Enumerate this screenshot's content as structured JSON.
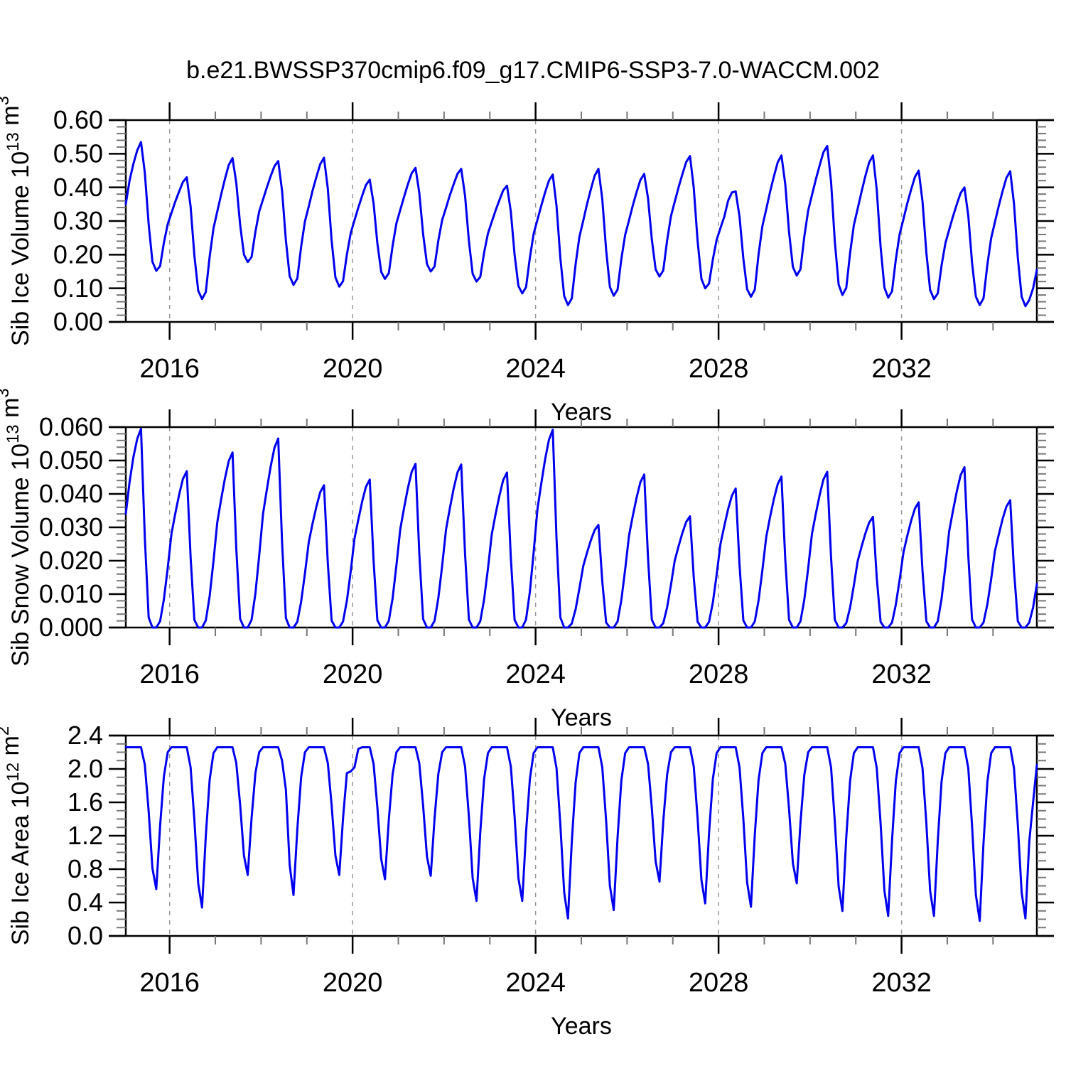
{
  "title": "b.e21.BWSSP370cmip6.f09_g17.CMIP6-SSP3-7.0-WACCM.002",
  "colors": {
    "line": "#0000ee",
    "frame": "#000000",
    "major_tick": "#000000",
    "minor_tick": "#777777",
    "gridline": "#999999",
    "background": "#ffffff"
  },
  "xaxis": {
    "label": "Years",
    "xmin": 2015.042,
    "xmax": 2034.958,
    "major_ticks": [
      2016,
      2020,
      2024,
      2028,
      2032
    ],
    "major_tick_labels": [
      "2016",
      "2020",
      "2024",
      "2028",
      "2032"
    ],
    "minor_tick_step_years": 1,
    "gridlines_at": [
      2016,
      2020,
      2024,
      2028,
      2032
    ],
    "grid_style": "dashed"
  },
  "chart_data": [
    {
      "type": "line",
      "panel": "top",
      "ylabel_plain": "Sib Ice Volume 10^13 m^3",
      "ylabel_segments": [
        {
          "t": "Sib Ice Volume 10"
        },
        {
          "t": "13",
          "sup": true
        },
        {
          "t": " m"
        },
        {
          "t": "3",
          "sup": true
        }
      ],
      "ylim": [
        0.0,
        0.6
      ],
      "ytick_values": [
        0.0,
        0.1,
        0.2,
        0.3,
        0.4,
        0.5,
        0.6
      ],
      "ytick_labels": [
        "0.00",
        "0.10",
        "0.20",
        "0.30",
        "0.40",
        "0.50",
        "0.60"
      ],
      "y_minor_step": 0.02,
      "series_name": "Sib Ice Volume",
      "start_year": 2015,
      "points_per_year": 12,
      "values": [
        0.35,
        0.42,
        0.47,
        0.51,
        0.535,
        0.443,
        0.29,
        0.179,
        0.152,
        0.166,
        0.235,
        0.291,
        0.324,
        0.358,
        0.388,
        0.416,
        0.43,
        0.343,
        0.198,
        0.093,
        0.068,
        0.089,
        0.194,
        0.278,
        0.328,
        0.378,
        0.424,
        0.466,
        0.487,
        0.413,
        0.289,
        0.2,
        0.178,
        0.193,
        0.268,
        0.328,
        0.364,
        0.4,
        0.433,
        0.463,
        0.478,
        0.39,
        0.242,
        0.136,
        0.11,
        0.129,
        0.223,
        0.299,
        0.344,
        0.39,
        0.431,
        0.469,
        0.488,
        0.396,
        0.243,
        0.132,
        0.105,
        0.121,
        0.2,
        0.264,
        0.302,
        0.34,
        0.375,
        0.407,
        0.423,
        0.352,
        0.234,
        0.149,
        0.128,
        0.145,
        0.227,
        0.293,
        0.333,
        0.372,
        0.409,
        0.442,
        0.458,
        0.384,
        0.261,
        0.172,
        0.15,
        0.165,
        0.242,
        0.303,
        0.339,
        0.376,
        0.409,
        0.44,
        0.455,
        0.375,
        0.241,
        0.143,
        0.12,
        0.134,
        0.206,
        0.263,
        0.297,
        0.331,
        0.362,
        0.391,
        0.405,
        0.328,
        0.2,
        0.107,
        0.085,
        0.103,
        0.191,
        0.262,
        0.304,
        0.346,
        0.385,
        0.42,
        0.438,
        0.345,
        0.19,
        0.077,
        0.05,
        0.07,
        0.172,
        0.253,
        0.301,
        0.35,
        0.394,
        0.435,
        0.455,
        0.365,
        0.214,
        0.104,
        0.078,
        0.096,
        0.187,
        0.259,
        0.302,
        0.346,
        0.386,
        0.422,
        0.44,
        0.367,
        0.245,
        0.156,
        0.135,
        0.153,
        0.242,
        0.314,
        0.357,
        0.4,
        0.439,
        0.475,
        0.493,
        0.399,
        0.241,
        0.128,
        0.1,
        0.114,
        0.186,
        0.244,
        0.279,
        0.313,
        0.36,
        0.385,
        0.388,
        0.313,
        0.188,
        0.097,
        0.075,
        0.096,
        0.201,
        0.285,
        0.335,
        0.386,
        0.432,
        0.474,
        0.495,
        0.409,
        0.267,
        0.163,
        0.138,
        0.157,
        0.254,
        0.331,
        0.377,
        0.423,
        0.465,
        0.504,
        0.523,
        0.417,
        0.239,
        0.111,
        0.08,
        0.101,
        0.205,
        0.288,
        0.337,
        0.387,
        0.433,
        0.474,
        0.495,
        0.393,
        0.224,
        0.102,
        0.072,
        0.091,
        0.185,
        0.261,
        0.306,
        0.352,
        0.393,
        0.431,
        0.45,
        0.358,
        0.206,
        0.095,
        0.068,
        0.085,
        0.168,
        0.234,
        0.274,
        0.314,
        0.35,
        0.383,
        0.4,
        0.316,
        0.176,
        0.075,
        0.05,
        0.07,
        0.169,
        0.249,
        0.297,
        0.345,
        0.388,
        0.428,
        0.448,
        0.352,
        0.191,
        0.075,
        0.047,
        0.065,
        0.1,
        0.155
      ]
    },
    {
      "type": "line",
      "panel": "middle",
      "ylabel_plain": "Sib Snow Volume 10^13 m^3",
      "ylabel_segments": [
        {
          "t": "Sib Snow Volume 10"
        },
        {
          "t": "13",
          "sup": true
        },
        {
          "t": " m"
        },
        {
          "t": "3",
          "sup": true
        }
      ],
      "ylim": [
        0.0,
        0.06
      ],
      "ytick_values": [
        0.0,
        0.01,
        0.02,
        0.03,
        0.04,
        0.05,
        0.06
      ],
      "ytick_labels": [
        "0.000",
        "0.010",
        "0.020",
        "0.030",
        "0.040",
        "0.050",
        "0.060"
      ],
      "y_minor_step": 0.002,
      "series_name": "Sib Snow Volume",
      "start_year": 2015,
      "points_per_year": 12,
      "values": [
        0.034,
        0.0435,
        0.051,
        0.0565,
        0.0595,
        0.0268,
        0.003,
        0.0,
        0.0,
        0.0019,
        0.0084,
        0.0178,
        0.0281,
        0.0342,
        0.0398,
        0.0445,
        0.0468,
        0.0211,
        0.0023,
        0.0,
        0.0,
        0.0021,
        0.0094,
        0.0199,
        0.0314,
        0.0383,
        0.0445,
        0.0498,
        0.0524,
        0.0236,
        0.0026,
        0.0,
        0.0,
        0.0023,
        0.0102,
        0.0215,
        0.034,
        0.0413,
        0.0481,
        0.0538,
        0.0566,
        0.0255,
        0.0028,
        0.0,
        0.0,
        0.0017,
        0.0077,
        0.0162,
        0.0256,
        0.0311,
        0.0362,
        0.0405,
        0.0426,
        0.0192,
        0.0021,
        0.0,
        0.0,
        0.0018,
        0.008,
        0.0168,
        0.0266,
        0.0323,
        0.0377,
        0.0421,
        0.0443,
        0.0199,
        0.0022,
        0.0,
        0.0,
        0.002,
        0.0088,
        0.0186,
        0.0294,
        0.0358,
        0.0417,
        0.0466,
        0.049,
        0.0221,
        0.0025,
        0.0,
        0.0,
        0.002,
        0.0088,
        0.0185,
        0.0293,
        0.0356,
        0.0415,
        0.0464,
        0.0488,
        0.022,
        0.0024,
        0.0,
        0.0,
        0.0019,
        0.0084,
        0.0176,
        0.0278,
        0.0339,
        0.0394,
        0.0441,
        0.0464,
        0.0209,
        0.0023,
        0.0,
        0.0,
        0.0024,
        0.0107,
        0.0225,
        0.0355,
        0.0432,
        0.0503,
        0.0562,
        0.0592,
        0.0266,
        0.003,
        0.0,
        0.0,
        0.0012,
        0.0055,
        0.0117,
        0.0184,
        0.0224,
        0.0261,
        0.0292,
        0.0307,
        0.0138,
        0.0015,
        0.0,
        0.0,
        0.0018,
        0.0082,
        0.0174,
        0.0275,
        0.0334,
        0.0389,
        0.0435,
        0.0458,
        0.0206,
        0.0023,
        0.0,
        0.0,
        0.0013,
        0.006,
        0.0127,
        0.02,
        0.0243,
        0.0283,
        0.0316,
        0.0333,
        0.015,
        0.0017,
        0.0,
        0.0,
        0.0017,
        0.0075,
        0.0158,
        0.025,
        0.0304,
        0.0354,
        0.0395,
        0.0416,
        0.0187,
        0.0021,
        0.0,
        0.0,
        0.0018,
        0.0081,
        0.0172,
        0.0271,
        0.033,
        0.0384,
        0.0429,
        0.0452,
        0.0203,
        0.0023,
        0.0,
        0.0,
        0.0019,
        0.0084,
        0.0177,
        0.028,
        0.034,
        0.0396,
        0.0443,
        0.0466,
        0.021,
        0.0023,
        0.0,
        0.0,
        0.0013,
        0.006,
        0.0126,
        0.0199,
        0.0242,
        0.0281,
        0.0314,
        0.0331,
        0.0149,
        0.0017,
        0.0,
        0.0,
        0.0015,
        0.0068,
        0.0143,
        0.0225,
        0.0274,
        0.0319,
        0.0356,
        0.0375,
        0.0169,
        0.0019,
        0.0,
        0.0,
        0.0019,
        0.0086,
        0.0182,
        0.0288,
        0.035,
        0.0408,
        0.0456,
        0.048,
        0.0216,
        0.0024,
        0.0,
        0.0,
        0.0015,
        0.0069,
        0.0145,
        0.0229,
        0.0278,
        0.0324,
        0.0362,
        0.0381,
        0.0171,
        0.0019,
        0.0,
        0.0,
        0.0015,
        0.006,
        0.013
      ]
    },
    {
      "type": "line",
      "panel": "bottom",
      "ylabel_plain": "Sib Ice Area 10^12 m^2",
      "ylabel_segments": [
        {
          "t": "Sib Ice Area 10"
        },
        {
          "t": "12",
          "sup": true
        },
        {
          "t": " m"
        },
        {
          "t": "2",
          "sup": true
        }
      ],
      "ylim": [
        0.0,
        2.4
      ],
      "ytick_values": [
        0.0,
        0.4,
        0.8,
        1.2,
        1.6,
        2.0,
        2.4
      ],
      "ytick_labels": [
        "0.0",
        "0.4",
        "0.8",
        "1.2",
        "1.6",
        "2.0",
        "2.4"
      ],
      "y_minor_step": 0.1,
      "series_name": "Sib Ice Area",
      "start_year": 2015,
      "points_per_year": 12,
      "values": [
        2.26,
        2.26,
        2.26,
        2.26,
        2.26,
        2.05,
        1.49,
        0.81,
        0.56,
        1.32,
        1.91,
        2.2,
        2.26,
        2.26,
        2.26,
        2.26,
        2.26,
        2.02,
        1.39,
        0.63,
        0.34,
        1.2,
        1.87,
        2.19,
        2.26,
        2.26,
        2.26,
        2.26,
        2.26,
        2.07,
        1.57,
        0.96,
        0.73,
        1.41,
        1.95,
        2.2,
        2.26,
        2.26,
        2.26,
        2.26,
        2.26,
        2.1,
        1.75,
        0.85,
        0.49,
        1.28,
        1.9,
        2.2,
        2.26,
        2.26,
        2.26,
        2.26,
        2.26,
        2.07,
        1.57,
        0.96,
        0.73,
        1.41,
        1.95,
        1.97,
        2.02,
        2.24,
        2.26,
        2.26,
        2.26,
        2.06,
        1.54,
        0.92,
        0.68,
        1.39,
        1.94,
        2.2,
        2.26,
        2.26,
        2.26,
        2.26,
        2.26,
        2.07,
        1.56,
        0.95,
        0.72,
        1.41,
        1.94,
        2.2,
        2.26,
        2.26,
        2.26,
        2.26,
        2.26,
        2.03,
        1.43,
        0.69,
        0.42,
        1.24,
        1.88,
        2.19,
        2.26,
        2.26,
        2.26,
        2.26,
        2.26,
        2.03,
        1.43,
        0.69,
        0.42,
        1.24,
        1.88,
        2.19,
        2.26,
        2.26,
        2.26,
        2.26,
        2.26,
        2.01,
        1.33,
        0.52,
        0.21,
        1.13,
        1.84,
        2.19,
        2.26,
        2.26,
        2.26,
        2.26,
        2.26,
        2.02,
        1.38,
        0.6,
        0.31,
        1.18,
        1.86,
        2.19,
        2.26,
        2.26,
        2.26,
        2.26,
        2.26,
        2.06,
        1.53,
        0.89,
        0.65,
        1.37,
        1.93,
        2.2,
        2.26,
        2.26,
        2.26,
        2.26,
        2.26,
        2.03,
        1.41,
        0.67,
        0.39,
        1.23,
        1.88,
        2.19,
        2.26,
        2.26,
        2.26,
        2.26,
        2.26,
        2.02,
        1.4,
        0.64,
        0.35,
        1.21,
        1.87,
        2.19,
        2.26,
        2.26,
        2.26,
        2.26,
        2.26,
        2.06,
        1.52,
        0.87,
        0.63,
        1.36,
        1.93,
        2.2,
        2.26,
        2.26,
        2.26,
        2.26,
        2.26,
        2.02,
        1.37,
        0.59,
        0.3,
        1.18,
        1.86,
        2.19,
        2.26,
        2.26,
        2.26,
        2.26,
        2.26,
        2.01,
        1.35,
        0.54,
        0.24,
        1.14,
        1.85,
        2.19,
        2.26,
        2.26,
        2.26,
        2.26,
        2.26,
        2.01,
        1.35,
        0.54,
        0.24,
        1.14,
        1.85,
        2.19,
        2.26,
        2.26,
        2.26,
        2.26,
        2.26,
        2.01,
        1.32,
        0.49,
        0.18,
        1.11,
        1.84,
        2.19,
        2.26,
        2.26,
        2.26,
        2.26,
        2.26,
        2.01,
        1.33,
        0.52,
        0.21,
        1.13,
        1.6,
        2.05
      ]
    }
  ]
}
